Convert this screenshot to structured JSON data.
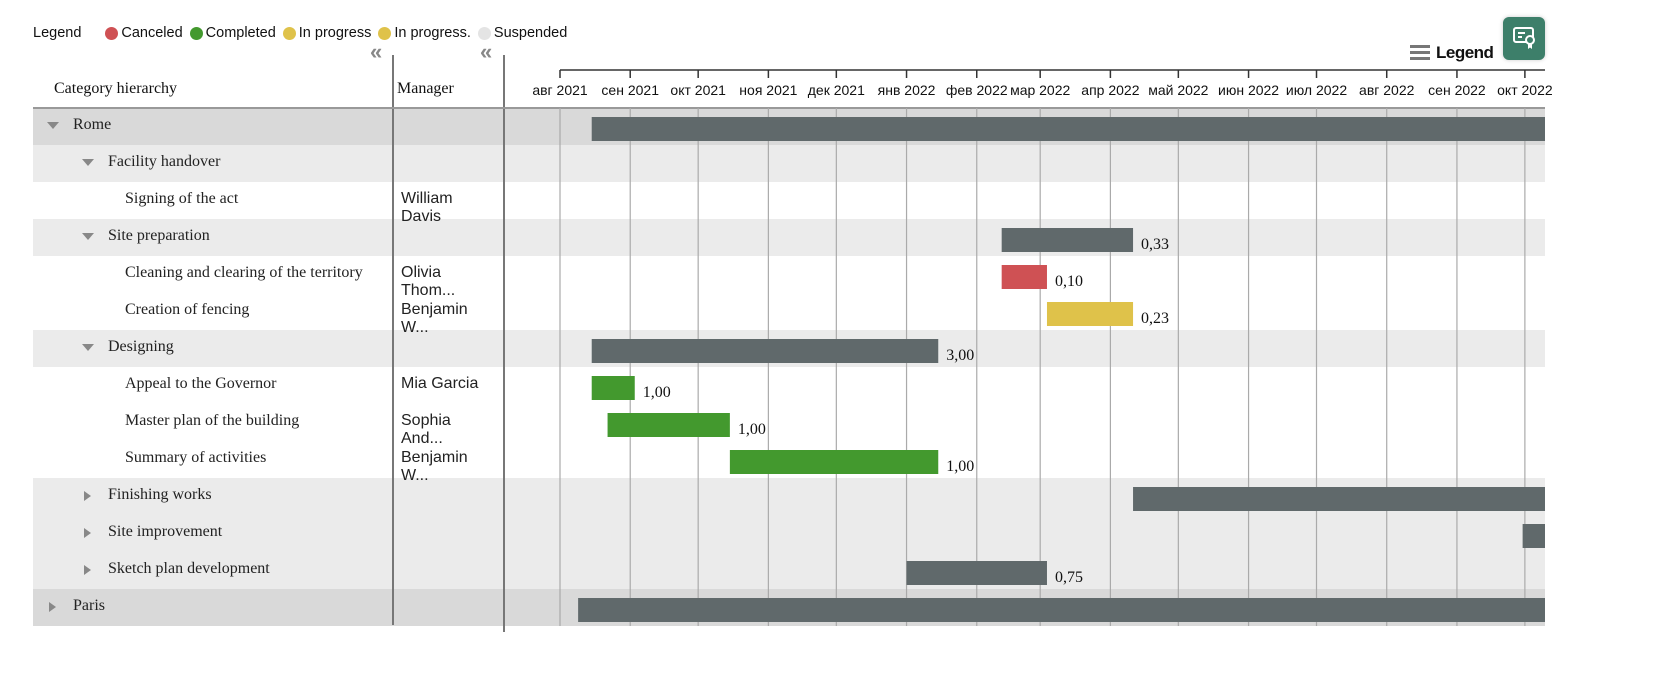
{
  "legend": {
    "title": "Legend",
    "items": [
      {
        "label": "Canceled",
        "color": "#cf5154"
      },
      {
        "label": "Completed",
        "color": "#43992e"
      },
      {
        "label": "In progress",
        "color": "#dfc24a"
      },
      {
        "label": "In progress.",
        "color": "#dfc24a"
      },
      {
        "label": "Suspended",
        "color": "#e4e4e4"
      }
    ],
    "toggle_label": "Legend"
  },
  "columns": {
    "category": "Category hierarchy",
    "manager": "Manager"
  },
  "timeline": {
    "months": [
      "авг 2021",
      "сен 2021",
      "окт 2021",
      "ноя 2021",
      "дек 2021",
      "янв 2022",
      "фев 2022",
      "мар 2022",
      "апр 2022",
      "май 2022",
      "июн 2022",
      "июл 2022",
      "авг 2022",
      "сен 2022",
      "окт 2022"
    ],
    "summary_color": "#60696b"
  },
  "rows": [
    {
      "name": "Rome",
      "level": 0,
      "expanded": true,
      "start": "2021-08-15",
      "end": null,
      "status": "summary"
    },
    {
      "name": "Facility handover",
      "level": 1,
      "expanded": true
    },
    {
      "name": "Signing of the act",
      "level": 2,
      "manager": "William Davis"
    },
    {
      "name": "Site preparation",
      "level": 1,
      "expanded": true,
      "start": "2022-02-12",
      "end": "2022-04-11",
      "status": "summary",
      "value": "0,33"
    },
    {
      "name": "Cleaning and clearing of the territory",
      "level": 2,
      "manager": "Olivia Thom...",
      "start": "2022-02-12",
      "end": "2022-03-04",
      "status": "Canceled",
      "value": "0,10"
    },
    {
      "name": "Creation of fencing",
      "level": 2,
      "manager": "Benjamin W...",
      "start": "2022-03-04",
      "end": "2022-04-11",
      "status": "In progress",
      "value": "0,23"
    },
    {
      "name": "Designing",
      "level": 1,
      "expanded": true,
      "start": "2021-08-15",
      "end": "2022-01-15",
      "status": "summary",
      "value": "3,00"
    },
    {
      "name": "Appeal to the Governor",
      "level": 2,
      "manager": "Mia Garcia",
      "start": "2021-08-15",
      "end": "2021-09-03",
      "status": "Completed",
      "value": "1,00"
    },
    {
      "name": "Master plan of the building",
      "level": 2,
      "manager": "Sophia And...",
      "start": "2021-08-22",
      "end": "2021-10-15",
      "status": "Completed",
      "value": "1,00"
    },
    {
      "name": "Summary of activities",
      "level": 2,
      "manager": "Benjamin W...",
      "start": "2021-10-15",
      "end": "2022-01-15",
      "status": "Completed",
      "value": "1,00"
    },
    {
      "name": "Finishing works",
      "level": 1,
      "expanded": false,
      "start": "2022-04-11",
      "end": null,
      "status": "summary"
    },
    {
      "name": "Site improvement",
      "level": 1,
      "expanded": false,
      "start": "2022-09-30",
      "end": null,
      "status": "summary"
    },
    {
      "name": "Sketch plan development",
      "level": 1,
      "expanded": false,
      "start": "2022-01-01",
      "end": "2022-03-04",
      "status": "summary",
      "value": "0,75"
    },
    {
      "name": "Paris",
      "level": 0,
      "expanded": false,
      "start": "2021-08-09",
      "end": null,
      "status": "summary"
    }
  ]
}
